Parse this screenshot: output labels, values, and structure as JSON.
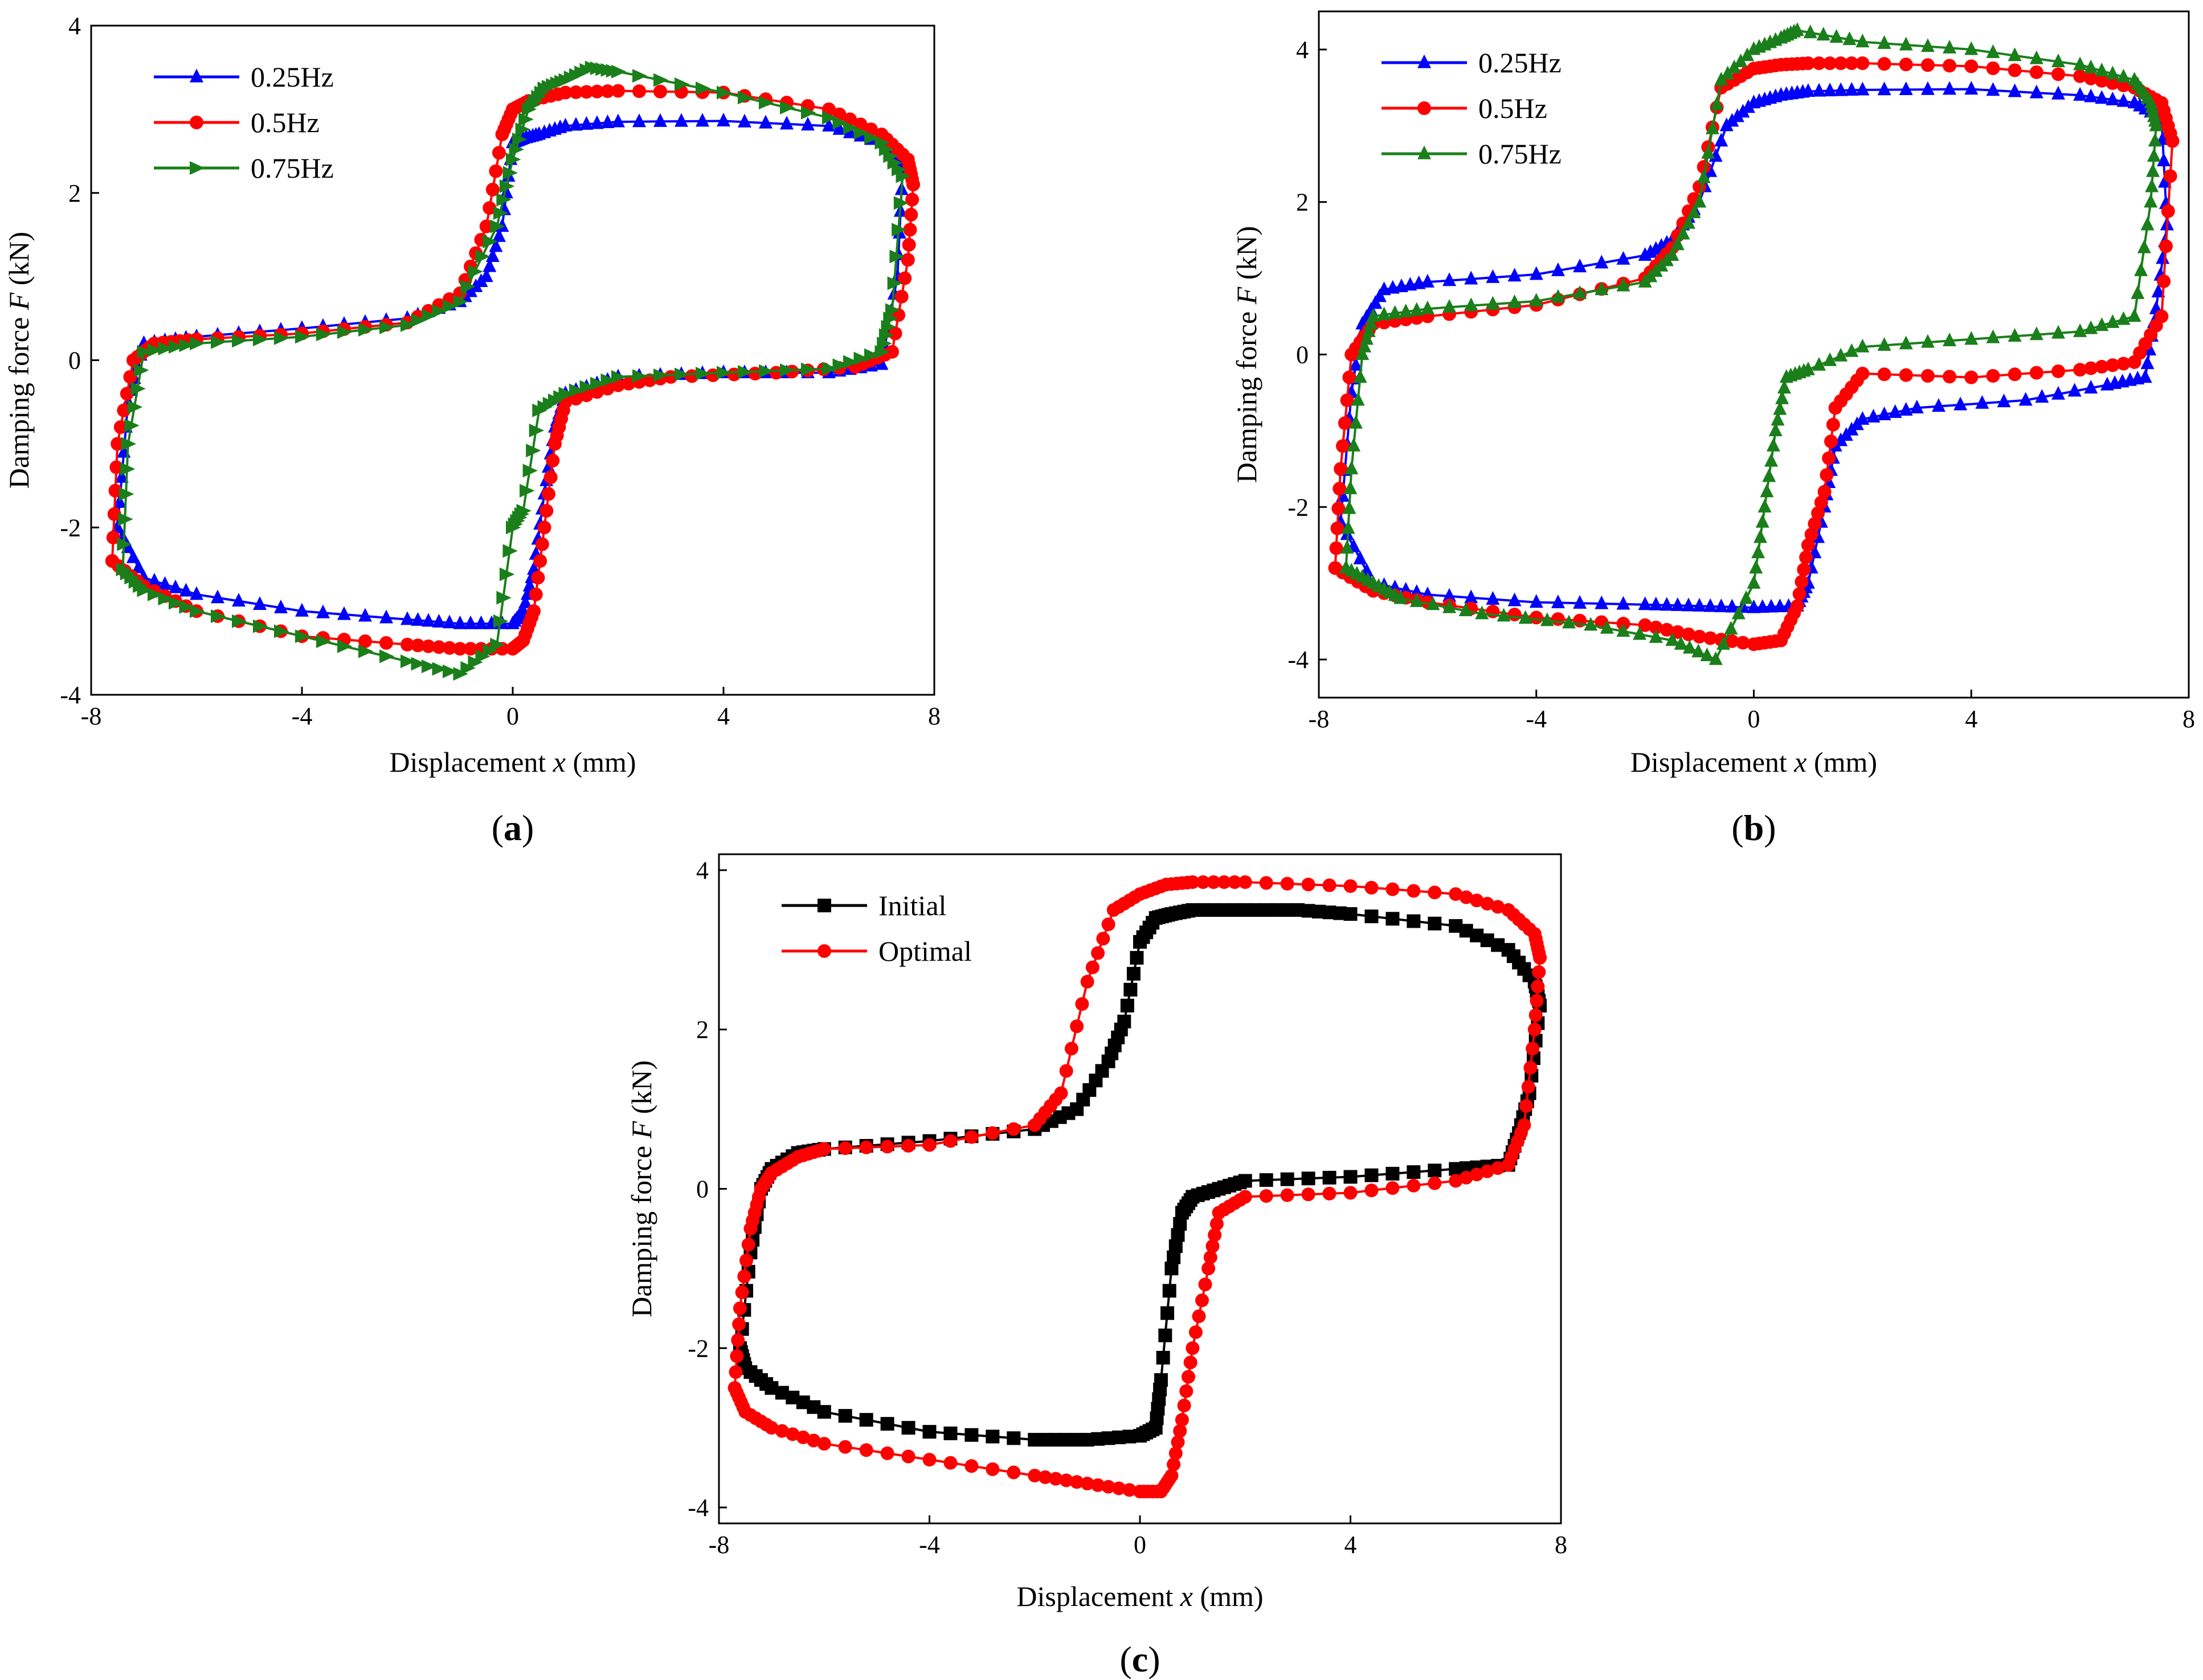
{
  "figure": {
    "panels": [
      {
        "caption_open": "(",
        "caption_letter": "a",
        "caption_close": ")"
      },
      {
        "caption_open": "(",
        "caption_letter": "b",
        "caption_close": ")"
      },
      {
        "caption_open": "(",
        "caption_letter": "c",
        "caption_close": ")"
      }
    ]
  },
  "chart_data": [
    {
      "type": "line",
      "title": "",
      "xlabel": "Displacement x (mm)",
      "xlabel_prefix": "Displacement ",
      "xlabel_var": "x",
      "xlabel_suffix": " (mm)",
      "ylabel": "Damping force F (kN)",
      "ylabel_prefix": "Damping force ",
      "ylabel_var": "F",
      "ylabel_suffix": " (kN)",
      "xlim": [
        -8,
        8
      ],
      "ylim": [
        -4,
        4
      ],
      "xticks": [
        -8,
        -4,
        0,
        4,
        8
      ],
      "yticks": [
        -4,
        -2,
        0,
        2,
        4
      ],
      "legend_position": "top-left",
      "series": [
        {
          "name": "0.25Hz",
          "color": "#0000ff",
          "marker": "triangle-up",
          "upper": {
            "x": [
              -7.5,
              -7.3,
              -7.0,
              -6.0,
              -4.0,
              -2.0,
              -1.0,
              -0.5,
              -0.2,
              0.0,
              0.2,
              0.5,
              1.0,
              2.0,
              4.0,
              6.0,
              7.0,
              7.4
            ],
            "y": [
              -2.0,
              -0.5,
              0.2,
              0.28,
              0.38,
              0.5,
              0.7,
              1.0,
              1.6,
              2.6,
              2.65,
              2.7,
              2.8,
              2.85,
              2.86,
              2.8,
              2.6,
              2.3
            ]
          },
          "lower": {
            "x": [
              7.4,
              7.3,
              7.0,
              6.0,
              4.0,
              2.0,
              1.0,
              0.8,
              0.6,
              0.4,
              0.2,
              0.0,
              -1.0,
              -2.0,
              -4.0,
              -6.0,
              -7.0,
              -7.5
            ],
            "y": [
              2.3,
              1.0,
              -0.05,
              -0.15,
              -0.15,
              -0.2,
              -0.4,
              -0.8,
              -1.6,
              -2.5,
              -3.0,
              -3.15,
              -3.15,
              -3.1,
              -3.0,
              -2.8,
              -2.6,
              -2.0
            ]
          }
        },
        {
          "name": "0.5Hz",
          "color": "#ff0000",
          "marker": "circle",
          "upper": {
            "x": [
              -7.6,
              -7.5,
              -7.2,
              -6.8,
              -6.0,
              -4.0,
              -2.0,
              -1.0,
              -0.5,
              -0.2,
              0.0,
              0.3,
              1.0,
              2.0,
              4.0,
              6.0,
              7.0,
              7.5,
              7.6
            ],
            "y": [
              -2.4,
              -1.0,
              0.0,
              0.2,
              0.25,
              0.32,
              0.45,
              0.8,
              1.6,
              2.7,
              3.0,
              3.1,
              3.2,
              3.22,
              3.2,
              3.0,
              2.7,
              2.4,
              2.1
            ]
          },
          "lower": {
            "x": [
              7.6,
              7.5,
              7.2,
              6.5,
              5.0,
              3.0,
              2.0,
              1.0,
              0.8,
              0.6,
              0.4,
              0.2,
              0.0,
              -1.0,
              -2.0,
              -4.0,
              -6.0,
              -7.0,
              -7.6
            ],
            "y": [
              2.1,
              1.2,
              0.1,
              -0.08,
              -0.15,
              -0.2,
              -0.3,
              -0.5,
              -1.0,
              -2.0,
              -3.0,
              -3.35,
              -3.45,
              -3.45,
              -3.4,
              -3.3,
              -3.0,
              -2.7,
              -2.4
            ]
          }
        },
        {
          "name": "0.75Hz",
          "color": "#1a7f1a",
          "marker": "triangle-right",
          "upper": {
            "x": [
              -7.4,
              -7.3,
              -7.0,
              -6.0,
              -4.0,
              -2.0,
              -1.0,
              -0.3,
              0.0,
              0.3,
              0.6,
              1.0,
              1.5,
              2.0,
              4.0,
              6.0,
              7.0,
              7.4
            ],
            "y": [
              -2.5,
              -1.0,
              0.1,
              0.2,
              0.28,
              0.42,
              0.7,
              1.6,
              2.4,
              3.0,
              3.25,
              3.35,
              3.5,
              3.45,
              3.2,
              2.9,
              2.6,
              2.2
            ]
          },
          "lower": {
            "x": [
              7.4,
              7.2,
              7.0,
              6.0,
              4.0,
              2.0,
              1.0,
              0.5,
              0.2,
              0.0,
              -0.3,
              -1.0,
              -2.0,
              -4.0,
              -6.0,
              -7.0,
              -7.4
            ],
            "y": [
              2.2,
              0.6,
              0.1,
              -0.1,
              -0.15,
              -0.2,
              -0.4,
              -0.6,
              -1.8,
              -2.0,
              -3.4,
              -3.75,
              -3.6,
              -3.3,
              -3.0,
              -2.75,
              -2.5
            ]
          }
        }
      ]
    },
    {
      "type": "line",
      "title": "",
      "xlabel": "Displacement x (mm)",
      "xlabel_prefix": "Displacement ",
      "xlabel_var": "x",
      "xlabel_suffix": " (mm)",
      "ylabel": "Damping force F (kN)",
      "ylabel_prefix": "Damping force ",
      "ylabel_var": "F",
      "ylabel_suffix": " (kN)",
      "xlim": [
        -8,
        8
      ],
      "ylim": [
        -4.5,
        4.5
      ],
      "xticks": [
        -8,
        -4,
        0,
        4,
        8
      ],
      "yticks": [
        -4,
        -2,
        0,
        2,
        4
      ],
      "legend_position": "top-left",
      "series": [
        {
          "name": "0.25Hz",
          "color": "#0000ff",
          "marker": "triangle-up",
          "upper": {
            "x": [
              -7.6,
              -7.4,
              -7.2,
              -6.8,
              -6.0,
              -4.0,
              -2.0,
              -1.5,
              -1.0,
              -0.5,
              0.0,
              0.5,
              1.0,
              2.0,
              4.0,
              6.0,
              7.0,
              7.5,
              7.6
            ],
            "y": [
              -2.2,
              -0.5,
              0.4,
              0.85,
              0.95,
              1.05,
              1.3,
              1.5,
              2.0,
              3.0,
              3.3,
              3.4,
              3.45,
              3.47,
              3.48,
              3.4,
              3.3,
              3.1,
              1.7
            ]
          },
          "lower": {
            "x": [
              7.6,
              7.4,
              7.2,
              6.5,
              5.0,
              3.0,
              2.0,
              1.5,
              1.3,
              1.0,
              0.8,
              0.0,
              -1.0,
              -2.0,
              -4.0,
              -6.0,
              -7.0,
              -7.6
            ],
            "y": [
              1.7,
              0.6,
              -0.3,
              -0.4,
              -0.6,
              -0.7,
              -0.85,
              -1.2,
              -2.0,
              -3.0,
              -3.3,
              -3.32,
              -3.3,
              -3.28,
              -3.25,
              -3.15,
              -3.0,
              -2.2
            ]
          }
        },
        {
          "name": "0.5Hz",
          "color": "#ff0000",
          "marker": "circle",
          "upper": {
            "x": [
              -7.7,
              -7.6,
              -7.4,
              -7.0,
              -6.0,
              -4.0,
              -2.0,
              -1.5,
              -1.0,
              -0.6,
              0.0,
              0.5,
              1.0,
              2.0,
              4.0,
              6.0,
              7.0,
              7.5,
              7.7
            ],
            "y": [
              -2.8,
              -1.5,
              0.0,
              0.4,
              0.5,
              0.65,
              1.0,
              1.4,
              2.2,
              3.5,
              3.75,
              3.8,
              3.82,
              3.82,
              3.78,
              3.65,
              3.5,
              3.3,
              2.8
            ]
          },
          "lower": {
            "x": [
              7.7,
              7.5,
              7.0,
              6.0,
              4.0,
              2.0,
              1.5,
              1.3,
              1.0,
              0.8,
              0.5,
              0.0,
              -1.0,
              -2.0,
              -4.0,
              -6.0,
              -7.0,
              -7.7
            ],
            "y": [
              2.8,
              0.5,
              -0.1,
              -0.2,
              -0.3,
              -0.25,
              -0.7,
              -1.8,
              -2.5,
              -3.3,
              -3.75,
              -3.8,
              -3.7,
              -3.55,
              -3.45,
              -3.25,
              -3.1,
              -2.8
            ]
          }
        },
        {
          "name": "0.75Hz",
          "color": "#1a7f1a",
          "marker": "triangle-up",
          "upper": {
            "x": [
              -7.5,
              -7.4,
              -7.2,
              -7.0,
              -6.0,
              -4.0,
              -2.0,
              -1.5,
              -1.0,
              -0.6,
              0.0,
              0.5,
              0.8,
              2.0,
              4.0,
              6.0,
              7.0,
              7.3,
              7.4
            ],
            "y": [
              -2.8,
              -1.5,
              0.0,
              0.5,
              0.6,
              0.7,
              0.95,
              1.3,
              2.0,
              3.6,
              4.0,
              4.15,
              4.25,
              4.1,
              4.0,
              3.8,
              3.6,
              3.3,
              3.0
            ]
          },
          "lower": {
            "x": [
              7.4,
              7.3,
              7.0,
              6.0,
              4.0,
              2.0,
              1.0,
              0.6,
              0.4,
              0.2,
              0.0,
              -0.7,
              -1.5,
              -3.0,
              -5.0,
              -6.5,
              -7.0,
              -7.5
            ],
            "y": [
              3.0,
              2.0,
              0.5,
              0.3,
              0.2,
              0.1,
              -0.2,
              -0.3,
              -1.0,
              -2.0,
              -3.0,
              -4.0,
              -3.75,
              -3.55,
              -3.4,
              -3.2,
              -3.0,
              -2.8
            ]
          }
        }
      ]
    },
    {
      "type": "line",
      "title": "",
      "xlabel": "Displacement x (mm)",
      "xlabel_prefix": "Displacement ",
      "xlabel_var": "x",
      "xlabel_suffix": " (mm)",
      "ylabel": "Damping force F (kN)",
      "ylabel_prefix": "Damping force ",
      "ylabel_var": "F",
      "ylabel_suffix": " (kN)",
      "xlim": [
        -8,
        8
      ],
      "ylim": [
        -4.2,
        4.2
      ],
      "xticks": [
        -8,
        -4,
        0,
        4,
        8
      ],
      "yticks": [
        -4,
        -2,
        0,
        2,
        4
      ],
      "legend_position": "top-left",
      "series": [
        {
          "name": "Initial",
          "color": "#000000",
          "marker": "square",
          "upper": {
            "x": [
              -7.6,
              -7.4,
              -7.2,
              -7.0,
              -6.5,
              -6.0,
              -4.0,
              -2.0,
              -1.2,
              -0.6,
              -0.3,
              0.0,
              0.3,
              0.6,
              1.0,
              2.0,
              3.0,
              4.0,
              6.0,
              7.0,
              7.5,
              7.6
            ],
            "y": [
              -2.0,
              -0.8,
              0.0,
              0.25,
              0.45,
              0.5,
              0.6,
              0.75,
              1.0,
              1.6,
              2.1,
              3.1,
              3.4,
              3.45,
              3.5,
              3.5,
              3.5,
              3.45,
              3.3,
              3.0,
              2.6,
              2.3
            ]
          },
          "lower": {
            "x": [
              7.6,
              7.4,
              7.2,
              7.0,
              6.0,
              4.0,
              2.0,
              1.5,
              1.0,
              0.8,
              0.6,
              0.4,
              0.3,
              0.0,
              -1.0,
              -2.0,
              -4.0,
              -6.0,
              -7.0,
              -7.5,
              -7.6
            ],
            "y": [
              2.3,
              1.2,
              0.7,
              0.3,
              0.25,
              0.15,
              0.1,
              0.0,
              -0.1,
              -0.3,
              -1.0,
              -2.4,
              -3.0,
              -3.1,
              -3.15,
              -3.15,
              -3.05,
              -2.8,
              -2.5,
              -2.25,
              -2.0
            ]
          }
        },
        {
          "name": "Optimal",
          "color": "#ff0000",
          "marker": "circle",
          "upper": {
            "x": [
              -7.7,
              -7.6,
              -7.4,
              -7.2,
              -7.0,
              -6.5,
              -6.0,
              -4.0,
              -2.0,
              -1.5,
              -1.0,
              -0.5,
              0.0,
              0.5,
              1.0,
              2.0,
              4.0,
              6.0,
              7.0,
              7.5,
              7.6
            ],
            "y": [
              -2.5,
              -1.5,
              -0.5,
              0.0,
              0.2,
              0.4,
              0.5,
              0.55,
              0.8,
              1.2,
              2.6,
              3.5,
              3.7,
              3.82,
              3.85,
              3.85,
              3.8,
              3.7,
              3.5,
              3.2,
              2.9
            ]
          },
          "lower": {
            "x": [
              7.6,
              7.5,
              7.3,
              7.0,
              6.0,
              4.0,
              2.0,
              1.5,
              1.3,
              1.0,
              0.8,
              0.6,
              0.4,
              0.0,
              -1.0,
              -2.0,
              -4.0,
              -6.0,
              -7.0,
              -7.5,
              -7.7
            ],
            "y": [
              2.9,
              2.0,
              0.8,
              0.3,
              0.1,
              -0.05,
              -0.1,
              -0.3,
              -1.0,
              -2.0,
              -2.9,
              -3.6,
              -3.8,
              -3.8,
              -3.7,
              -3.6,
              -3.4,
              -3.2,
              -3.0,
              -2.8,
              -2.5
            ]
          }
        }
      ]
    }
  ]
}
